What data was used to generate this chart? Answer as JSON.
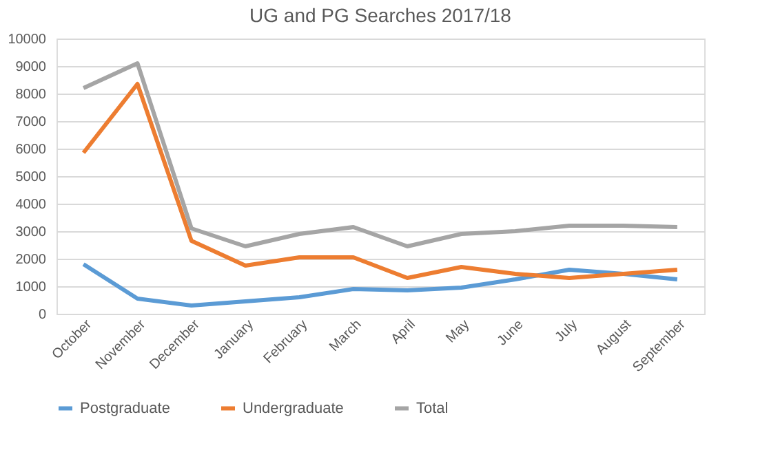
{
  "chart_data": {
    "type": "line",
    "title": "UG and PG Searches 2017/18",
    "categories": [
      "October",
      "November",
      "December",
      "January",
      "February",
      "March",
      "April",
      "May",
      "June",
      "July",
      "August",
      "September"
    ],
    "series": [
      {
        "name": "Postgraduate",
        "color": "#5b9bd5",
        "values": [
          1800,
          550,
          300,
          450,
          600,
          900,
          850,
          950,
          1250,
          1600,
          1450,
          1250
        ]
      },
      {
        "name": "Undergraduate",
        "color": "#ed7d31",
        "values": [
          5850,
          8350,
          2650,
          1750,
          2050,
          2050,
          1300,
          1700,
          1450,
          1300,
          1450,
          1600
        ]
      },
      {
        "name": "Total",
        "color": "#a5a5a5",
        "values": [
          8200,
          9100,
          3100,
          2450,
          2900,
          3150,
          2450,
          2900,
          3000,
          3200,
          3200,
          3150
        ]
      }
    ],
    "ylim": [
      0,
      10000
    ],
    "yticks": [
      0,
      1000,
      2000,
      3000,
      4000,
      5000,
      6000,
      7000,
      8000,
      9000,
      10000
    ],
    "grid": "y",
    "legend": "bottom",
    "marker": "none",
    "line_style": "solid"
  }
}
